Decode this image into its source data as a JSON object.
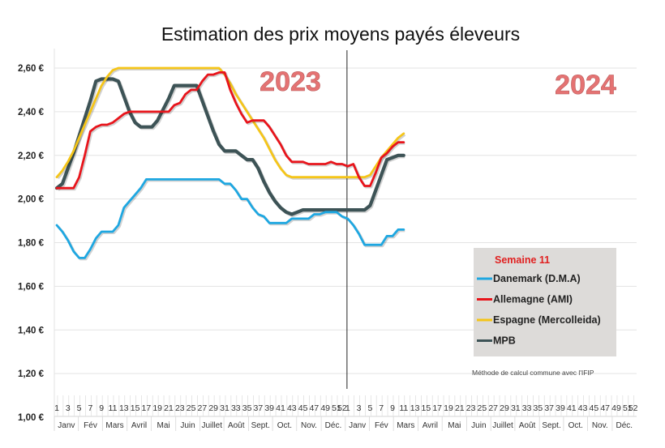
{
  "chart_data": {
    "type": "line",
    "title": "Estimation des prix moyens payés éleveurs",
    "xlabel": "",
    "ylabel": "",
    "ylim": [
      1.0,
      2.7
    ],
    "yticks": [
      1.0,
      1.2,
      1.4,
      1.6,
      1.8,
      2.0,
      2.2,
      2.4,
      2.6
    ],
    "ytick_labels": [
      "1,00 €",
      "1,20 €",
      "1,40 €",
      "1,60 €",
      "1,80 €",
      "2,00 €",
      "2,20 €",
      "2,40 €",
      "2,60 €"
    ],
    "grid": true,
    "year_labels": [
      "2023",
      "2024"
    ],
    "xtick_labels": [
      "1",
      "3",
      "5",
      "7",
      "9",
      "11",
      "13",
      "15",
      "17",
      "19",
      "21",
      "23",
      "25",
      "27",
      "29",
      "31",
      "33",
      "35",
      "37",
      "39",
      "41",
      "43",
      "45",
      "47",
      "49",
      "51",
      "52",
      "1",
      "3",
      "5",
      "7",
      "9",
      "11",
      "13",
      "15",
      "17",
      "19",
      "21",
      "23",
      "25",
      "27",
      "29",
      "31",
      "33",
      "35",
      "37",
      "39",
      "41",
      "43",
      "45",
      "47",
      "49",
      "51",
      "52"
    ],
    "months": [
      "Janv",
      "Fév",
      "Mars",
      "Avril",
      "Mai",
      "Juin",
      "Juillet",
      "Août",
      "Sept.",
      "Oct.",
      "Nov.",
      "Déc.",
      "Janv",
      "Fév",
      "Mars",
      "Avril",
      "Mai",
      "Juin",
      "Juillet",
      "Août",
      "Sept.",
      "Oct.",
      "Nov.",
      "Déc."
    ],
    "legend": {
      "title": "Semaine 11",
      "placement": "bottom-right",
      "note": "Méthode de calcul commune avec l'IFIP"
    },
    "x_unit": "week index (1-52 = 2023, 53-104 = 2024)",
    "series": [
      {
        "name": "Danemark (D.M.A)",
        "color": "#1ea7e1",
        "x": [
          1,
          2,
          3,
          4,
          5,
          6,
          7,
          8,
          9,
          10,
          11,
          12,
          13,
          14,
          15,
          16,
          17,
          18,
          19,
          20,
          21,
          22,
          23,
          24,
          25,
          26,
          27,
          28,
          29,
          30,
          31,
          32,
          33,
          34,
          35,
          36,
          37,
          38,
          39,
          40,
          41,
          42,
          43,
          44,
          45,
          46,
          47,
          48,
          49,
          50,
          51,
          52,
          53,
          54,
          55,
          56,
          57,
          58,
          59,
          60,
          61,
          62,
          63
        ],
        "values": [
          1.88,
          1.85,
          1.81,
          1.76,
          1.73,
          1.73,
          1.77,
          1.82,
          1.85,
          1.85,
          1.85,
          1.88,
          1.96,
          1.99,
          2.02,
          2.05,
          2.09,
          2.09,
          2.09,
          2.09,
          2.09,
          2.09,
          2.09,
          2.09,
          2.09,
          2.09,
          2.09,
          2.09,
          2.09,
          2.09,
          2.07,
          2.07,
          2.04,
          2.0,
          2.0,
          1.96,
          1.93,
          1.92,
          1.89,
          1.89,
          1.89,
          1.89,
          1.91,
          1.91,
          1.91,
          1.91,
          1.93,
          1.93,
          1.94,
          1.94,
          1.94,
          1.92,
          1.91,
          1.88,
          1.84,
          1.79,
          1.79,
          1.79,
          1.79,
          1.83,
          1.83,
          1.86,
          1.86
        ]
      },
      {
        "name": "Allemagne (AMI)",
        "color": "#e8141b",
        "x": [
          1,
          2,
          3,
          4,
          5,
          6,
          7,
          8,
          9,
          10,
          11,
          12,
          13,
          14,
          15,
          16,
          17,
          18,
          19,
          20,
          21,
          22,
          23,
          24,
          25,
          26,
          27,
          28,
          29,
          30,
          31,
          32,
          33,
          34,
          35,
          36,
          37,
          38,
          39,
          40,
          41,
          42,
          43,
          44,
          45,
          46,
          47,
          48,
          49,
          50,
          51,
          52,
          53,
          54,
          55,
          56,
          57,
          58,
          59,
          60,
          61,
          62,
          63
        ],
        "values": [
          2.05,
          2.05,
          2.05,
          2.05,
          2.1,
          2.2,
          2.31,
          2.33,
          2.34,
          2.34,
          2.35,
          2.37,
          2.39,
          2.4,
          2.4,
          2.4,
          2.4,
          2.4,
          2.4,
          2.4,
          2.4,
          2.43,
          2.44,
          2.48,
          2.5,
          2.5,
          2.54,
          2.57,
          2.57,
          2.58,
          2.58,
          2.5,
          2.44,
          2.39,
          2.35,
          2.36,
          2.36,
          2.36,
          2.33,
          2.29,
          2.25,
          2.2,
          2.17,
          2.17,
          2.17,
          2.16,
          2.16,
          2.16,
          2.16,
          2.17,
          2.16,
          2.16,
          2.15,
          2.16,
          2.1,
          2.06,
          2.06,
          2.12,
          2.19,
          2.21,
          2.24,
          2.26,
          2.26
        ]
      },
      {
        "name": "Espagne (Mercolleida)",
        "color": "#f5c518",
        "x": [
          1,
          2,
          3,
          4,
          5,
          6,
          7,
          8,
          9,
          10,
          11,
          12,
          13,
          14,
          15,
          16,
          17,
          18,
          19,
          20,
          21,
          22,
          23,
          24,
          25,
          26,
          27,
          28,
          29,
          30,
          31,
          32,
          33,
          34,
          35,
          36,
          37,
          38,
          39,
          40,
          41,
          42,
          43,
          44,
          45,
          46,
          47,
          48,
          49,
          50,
          51,
          52,
          53,
          54,
          55,
          56,
          57,
          58,
          59,
          60,
          61,
          62,
          63
        ],
        "values": [
          2.1,
          2.13,
          2.17,
          2.22,
          2.28,
          2.34,
          2.4,
          2.46,
          2.52,
          2.56,
          2.59,
          2.6,
          2.6,
          2.6,
          2.6,
          2.6,
          2.6,
          2.6,
          2.6,
          2.6,
          2.6,
          2.6,
          2.6,
          2.6,
          2.6,
          2.6,
          2.6,
          2.6,
          2.6,
          2.6,
          2.57,
          2.53,
          2.48,
          2.44,
          2.4,
          2.36,
          2.32,
          2.28,
          2.23,
          2.18,
          2.14,
          2.11,
          2.1,
          2.1,
          2.1,
          2.1,
          2.1,
          2.1,
          2.1,
          2.1,
          2.1,
          2.1,
          2.1,
          2.1,
          2.1,
          2.1,
          2.11,
          2.15,
          2.19,
          2.22,
          2.25,
          2.28,
          2.3
        ]
      },
      {
        "name": "MPB",
        "color": "#3d5356",
        "x": [
          1,
          2,
          3,
          4,
          5,
          6,
          7,
          8,
          9,
          10,
          11,
          12,
          13,
          14,
          15,
          16,
          17,
          18,
          19,
          20,
          21,
          22,
          23,
          24,
          25,
          26,
          27,
          28,
          29,
          30,
          31,
          32,
          33,
          34,
          35,
          36,
          37,
          38,
          39,
          40,
          41,
          42,
          43,
          44,
          45,
          46,
          47,
          48,
          49,
          50,
          51,
          52,
          53,
          54,
          55,
          56,
          57,
          58,
          59,
          60,
          61,
          62,
          63
        ],
        "values": [
          2.05,
          2.07,
          2.14,
          2.21,
          2.29,
          2.37,
          2.45,
          2.54,
          2.55,
          2.55,
          2.55,
          2.54,
          2.47,
          2.4,
          2.35,
          2.33,
          2.33,
          2.33,
          2.36,
          2.41,
          2.46,
          2.52,
          2.52,
          2.52,
          2.52,
          2.52,
          2.45,
          2.38,
          2.31,
          2.25,
          2.22,
          2.22,
          2.22,
          2.2,
          2.18,
          2.18,
          2.14,
          2.08,
          2.03,
          1.99,
          1.96,
          1.94,
          1.93,
          1.94,
          1.95,
          1.95,
          1.95,
          1.95,
          1.95,
          1.95,
          1.95,
          1.95,
          1.95,
          1.95,
          1.95,
          1.95,
          1.97,
          2.04,
          2.11,
          2.18,
          2.19,
          2.2,
          2.2
        ]
      }
    ]
  }
}
